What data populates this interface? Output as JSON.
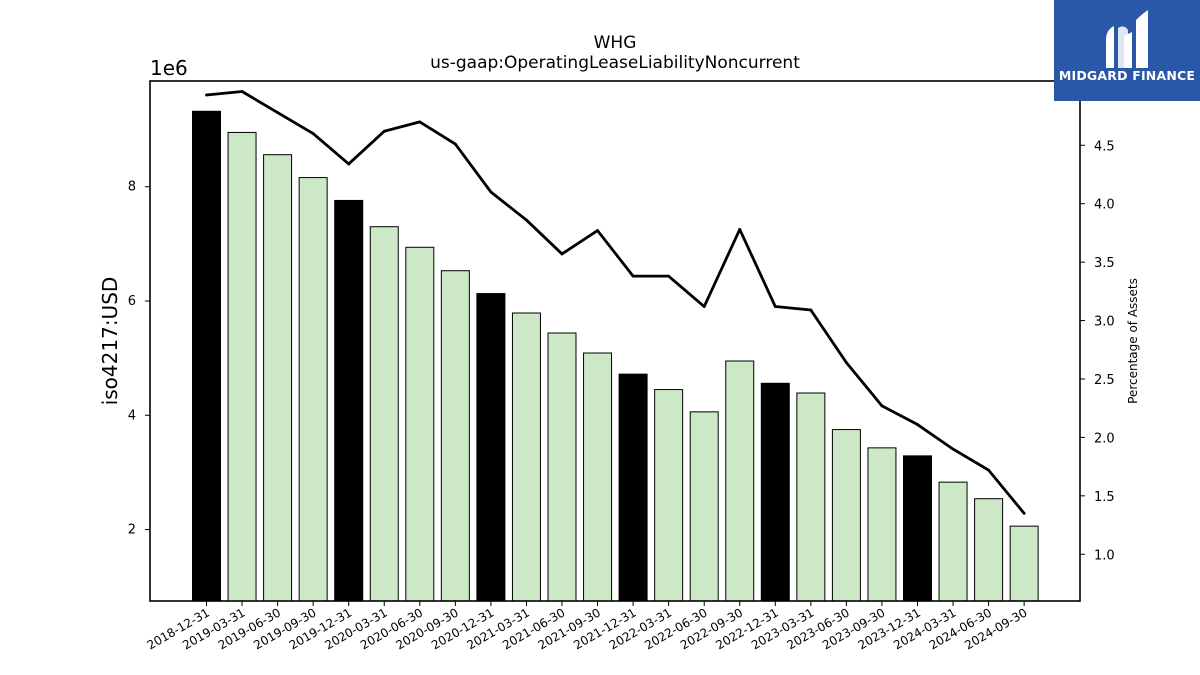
{
  "chart_data": {
    "type": "bar",
    "title": "WHG",
    "subtitle": "us-gaap:OperatingLeaseLiabilityNoncurrent",
    "ylabel": "iso4217:USD",
    "y_offset_label": "1e6",
    "y2label": "Percentage of Assets",
    "ylim": [
      0.75,
      9.85
    ],
    "y2lim": [
      0.6,
      5.05
    ],
    "yticks": [
      2,
      4,
      6,
      8
    ],
    "y2ticks": [
      1.0,
      1.5,
      2.0,
      2.5,
      3.0,
      3.5,
      4.0,
      4.5
    ],
    "categories": [
      "2018-12-31",
      "2019-03-31",
      "2019-06-30",
      "2019-09-30",
      "2019-12-31",
      "2020-03-31",
      "2020-06-30",
      "2020-09-30",
      "2020-12-31",
      "2021-03-31",
      "2021-06-30",
      "2021-09-30",
      "2021-12-31",
      "2022-03-31",
      "2022-06-30",
      "2022-09-30",
      "2022-12-31",
      "2023-03-31",
      "2023-06-30",
      "2023-09-30",
      "2023-12-31",
      "2024-03-31",
      "2024-06-30",
      "2024-09-30"
    ],
    "series": [
      {
        "values": [
          9.32,
          8.95,
          8.56,
          8.16,
          7.76,
          7.3,
          6.94,
          6.53,
          6.13,
          5.79,
          5.44,
          5.09,
          4.72,
          4.45,
          4.06,
          4.95,
          4.56,
          4.39,
          3.75,
          3.43,
          3.29,
          2.83,
          2.54,
          2.06
        ],
        "highlight": [
          true,
          false,
          false,
          false,
          true,
          false,
          false,
          false,
          true,
          false,
          false,
          false,
          true,
          false,
          false,
          false,
          true,
          false,
          false,
          false,
          true,
          false,
          false,
          false
        ],
        "color": "#cce8c6",
        "highlight_color": "#000000"
      },
      {
        "values": [
          4.93,
          4.96,
          4.78,
          4.6,
          4.34,
          4.62,
          4.7,
          4.51,
          4.1,
          3.86,
          3.57,
          3.77,
          3.38,
          3.38,
          3.12,
          3.78,
          3.12,
          3.09,
          2.64,
          2.27,
          2.11,
          1.9,
          1.72,
          1.35
        ],
        "axis": "right",
        "color": "#000000"
      }
    ]
  },
  "logo": {
    "text": "MIDGARD FINANCE",
    "color": "#2b57a8"
  }
}
